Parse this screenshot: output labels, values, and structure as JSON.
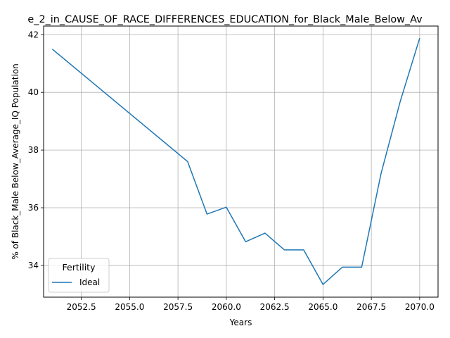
{
  "chart_data": {
    "type": "line",
    "title": "e_2_in_CAUSE_OF_RACE_DIFFERENCES_EDUCATION_for_Black_Male_Below_Av",
    "xlabel": "Years",
    "ylabel": "% of Black_Male Below_Average_IQ Population",
    "xlim": [
      2050.55,
      2070.95
    ],
    "ylim": [
      32.9,
      42.3
    ],
    "x_ticks": [
      2052.5,
      2055.0,
      2057.5,
      2060.0,
      2062.5,
      2065.0,
      2067.5,
      2070.0
    ],
    "x_tick_labels": [
      "2052.5",
      "2055.0",
      "2057.5",
      "2060.0",
      "2062.5",
      "2065.0",
      "2067.5",
      "2070.0"
    ],
    "y_ticks": [
      34,
      36,
      38,
      40,
      42
    ],
    "y_tick_labels": [
      "34",
      "36",
      "38",
      "40",
      "42"
    ],
    "grid": true,
    "legend": {
      "title": "Fertility",
      "placement": "lower-left"
    },
    "series": [
      {
        "name": "Ideal",
        "color": "#1f77b4",
        "x": [
          2051,
          2058,
          2059,
          2060,
          2061,
          2062,
          2063,
          2064,
          2065,
          2066,
          2067,
          2068,
          2069,
          2070
        ],
        "y": [
          41.5,
          37.6,
          35.78,
          36.02,
          34.82,
          35.12,
          34.54,
          34.54,
          33.34,
          33.94,
          33.94,
          37.18,
          39.7,
          41.88
        ]
      }
    ]
  }
}
